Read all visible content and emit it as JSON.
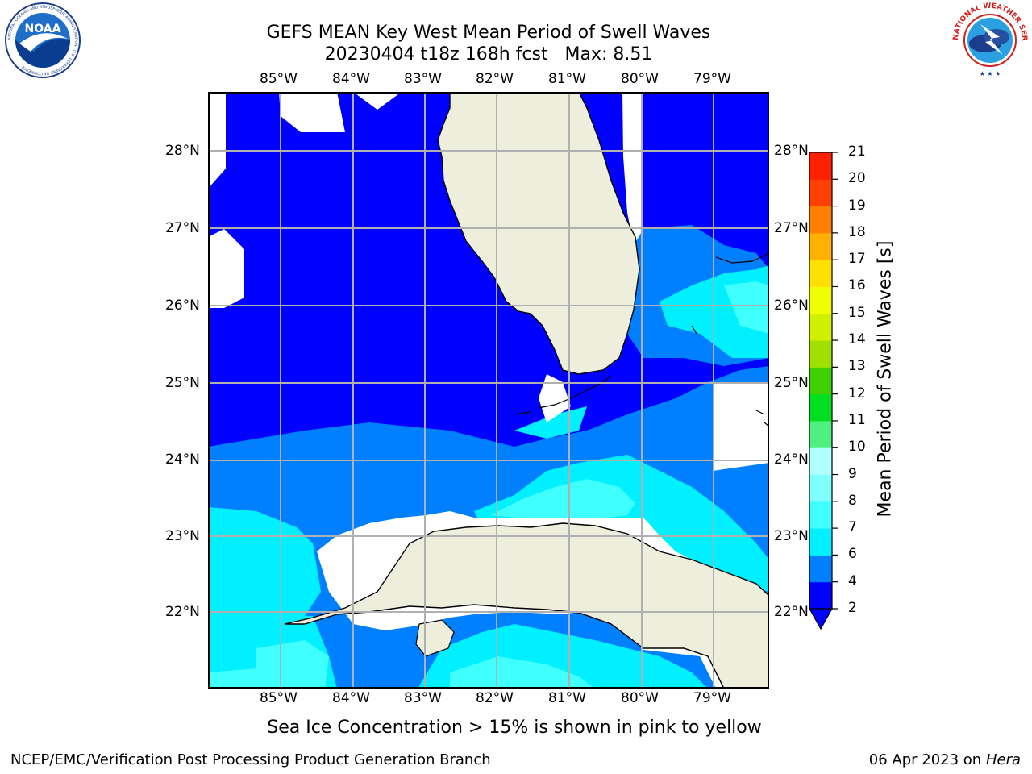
{
  "header": {
    "title_line1": "GEFS MEAN Key West Mean Period of Swell Waves",
    "title_line2": "20230404 t18z 168h fcst   Max: 8.51"
  },
  "map": {
    "lon_labels": [
      "85°W",
      "84°W",
      "83°W",
      "82°W",
      "81°W",
      "80°W",
      "79°W"
    ],
    "lat_labels": [
      "28°N",
      "27°N",
      "26°N",
      "25°N",
      "24°N",
      "23°N",
      "22°N"
    ],
    "colors": {
      "land": "#eeeedc",
      "nodata": "#ffffff",
      "gridline": "#b0b0b0"
    }
  },
  "colorbar": {
    "label": "Mean Period of Swell Waves [s]",
    "ticks": [
      "2",
      "4",
      "6",
      "7",
      "8",
      "9",
      "10",
      "11",
      "12",
      "13",
      "14",
      "15",
      "16",
      "17",
      "18",
      "19",
      "20",
      "21"
    ],
    "colors": [
      "#0000ff",
      "#0080ff",
      "#00f0ff",
      "#40ffff",
      "#80ffff",
      "#b0ffff",
      "#50f080",
      "#00e020",
      "#40d000",
      "#a0e000",
      "#d0f000",
      "#f0ff00",
      "#ffe000",
      "#ffb000",
      "#ff8000",
      "#ff4000",
      "#ff2000",
      "#ff0000"
    ]
  },
  "logos": {
    "noaa_text": "NOAA",
    "noaa_ring": "NATIONAL OCEANIC AND ATMOSPHERIC ADMINISTRATION · U.S. DEPARTMENT OF COMMERCE",
    "nws_ring": "NATIONAL WEATHER SERVICE"
  },
  "footer": {
    "note": "Sea Ice Concentration > 15% is shown in pink to yellow",
    "credit": "NCEP/EMC/Verification Post Processing Product Generation Branch",
    "date": "06 Apr 2023 on",
    "machine": "Hera"
  }
}
